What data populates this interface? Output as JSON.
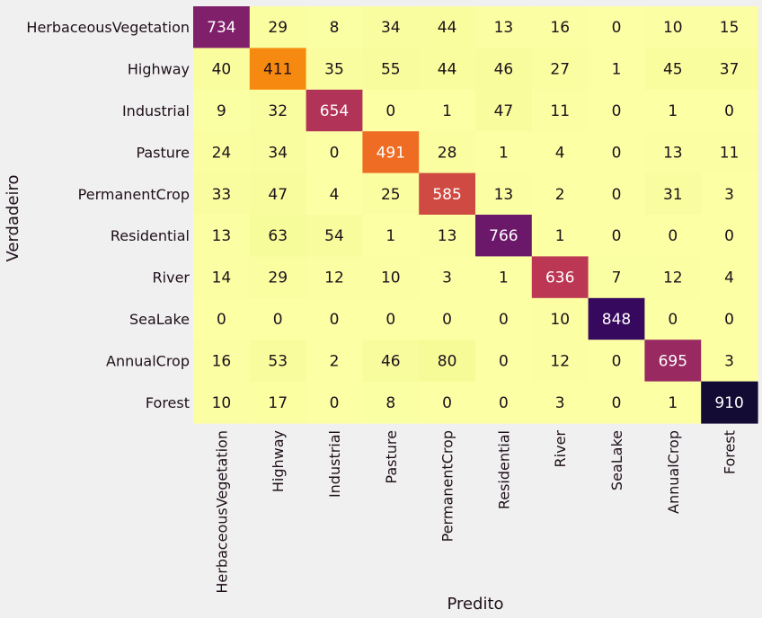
{
  "chart_data": {
    "type": "heatmap",
    "title": "",
    "xlabel": "Predito",
    "ylabel": "Verdadeiro",
    "x_categories": [
      "HerbaceousVegetation",
      "Highway",
      "Industrial",
      "Pasture",
      "PermanentCrop",
      "Residential",
      "River",
      "SeaLake",
      "AnnualCrop",
      "Forest"
    ],
    "y_categories": [
      "HerbaceousVegetation",
      "Highway",
      "Industrial",
      "Pasture",
      "PermanentCrop",
      "Residential",
      "River",
      "SeaLake",
      "AnnualCrop",
      "Forest"
    ],
    "values": [
      [
        734,
        29,
        8,
        34,
        44,
        13,
        16,
        0,
        10,
        15
      ],
      [
        40,
        411,
        35,
        55,
        44,
        46,
        27,
        1,
        45,
        37
      ],
      [
        9,
        32,
        654,
        0,
        1,
        47,
        11,
        0,
        1,
        0
      ],
      [
        24,
        34,
        0,
        491,
        28,
        1,
        4,
        0,
        13,
        11
      ],
      [
        33,
        47,
        4,
        25,
        585,
        13,
        2,
        0,
        31,
        3
      ],
      [
        13,
        63,
        54,
        1,
        13,
        766,
        1,
        0,
        0,
        0
      ],
      [
        14,
        29,
        12,
        10,
        3,
        1,
        636,
        7,
        12,
        4
      ],
      [
        0,
        0,
        0,
        0,
        0,
        0,
        10,
        848,
        0,
        0
      ],
      [
        16,
        53,
        2,
        46,
        80,
        0,
        12,
        0,
        695,
        3
      ],
      [
        10,
        17,
        0,
        8,
        0,
        0,
        3,
        0,
        1,
        910
      ]
    ],
    "colormap": "inferno_r",
    "value_range": [
      0,
      910
    ],
    "colorbar": false,
    "grid": false
  }
}
